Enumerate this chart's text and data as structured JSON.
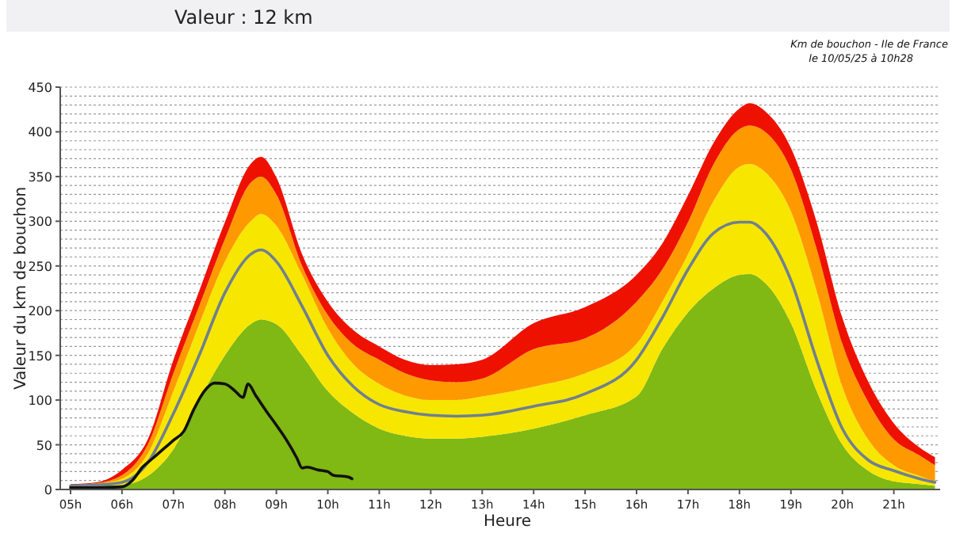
{
  "chart_data": {
    "type": "area",
    "title": "Valeur : 12 km",
    "annotations": [
      "Km de bouchon - Ile de France",
      "le 10/05/25 à 10h28"
    ],
    "xlabel": "Heure",
    "ylabel": "Valeur du km de bouchon",
    "stacked": true,
    "grid": "y",
    "x": [
      5,
      5.5,
      6,
      6.5,
      7,
      7.5,
      8,
      8.5,
      8.7,
      9,
      9.5,
      10,
      10.5,
      11,
      11.5,
      12,
      12.5,
      13,
      14,
      15,
      16,
      16.5,
      17,
      17.5,
      18,
      18.2,
      18.5,
      19,
      19.5,
      20,
      20.5,
      21,
      21.5,
      21.8
    ],
    "xlim": [
      4.8,
      21.9
    ],
    "xticks": [
      {
        "value": 5,
        "label": "05h"
      },
      {
        "value": 6,
        "label": "06h"
      },
      {
        "value": 7,
        "label": "07h"
      },
      {
        "value": 8,
        "label": "08h"
      },
      {
        "value": 9,
        "label": "09h"
      },
      {
        "value": 10,
        "label": "10h"
      },
      {
        "value": 11,
        "label": "11h"
      },
      {
        "value": 12,
        "label": "12h"
      },
      {
        "value": 13,
        "label": "13h"
      },
      {
        "value": 14,
        "label": "14h"
      },
      {
        "value": 15,
        "label": "15h"
      },
      {
        "value": 16,
        "label": "16h"
      },
      {
        "value": 17,
        "label": "17h"
      },
      {
        "value": 18,
        "label": "18h"
      },
      {
        "value": 19,
        "label": "19h"
      },
      {
        "value": 20,
        "label": "20h"
      },
      {
        "value": 21,
        "label": "21h"
      }
    ],
    "ylim": [
      0,
      450
    ],
    "yticks": [
      0,
      {
        "value": 10,
        "label": null
      },
      {
        "value": 20,
        "label": null
      },
      {
        "value": 30,
        "label": null
      },
      {
        "value": 40,
        "label": null
      },
      50,
      {
        "value": 60,
        "label": null
      },
      {
        "value": 70,
        "label": null
      },
      {
        "value": 80,
        "label": null
      },
      {
        "value": 90,
        "label": null
      },
      100,
      {
        "value": 110,
        "label": null
      },
      {
        "value": 120,
        "label": null
      },
      {
        "value": 130,
        "label": null
      },
      {
        "value": 140,
        "label": null
      },
      150,
      {
        "value": 160,
        "label": null
      },
      {
        "value": 170,
        "label": null
      },
      {
        "value": 180,
        "label": null
      },
      {
        "value": 190,
        "label": null
      },
      200,
      {
        "value": 210,
        "label": null
      },
      {
        "value": 220,
        "label": null
      },
      {
        "value": 230,
        "label": null
      },
      {
        "value": 240,
        "label": null
      },
      250,
      {
        "value": 260,
        "label": null
      },
      {
        "value": 270,
        "label": null
      },
      {
        "value": 280,
        "label": null
      },
      {
        "value": 290,
        "label": null
      },
      300,
      {
        "value": 310,
        "label": null
      },
      {
        "value": 320,
        "label": null
      },
      {
        "value": 330,
        "label": null
      },
      {
        "value": 340,
        "label": null
      },
      350,
      {
        "value": 360,
        "label": null
      },
      {
        "value": 370,
        "label": null
      },
      {
        "value": 380,
        "label": null
      },
      {
        "value": 390,
        "label": null
      },
      400,
      {
        "value": 410,
        "label": null
      },
      {
        "value": 420,
        "label": null
      },
      {
        "value": 430,
        "label": null
      },
      {
        "value": 440,
        "label": null
      },
      450
    ],
    "series": [
      {
        "color": "#80b814",
        "values": [
          3,
          4,
          5,
          15,
          45,
          100,
          150,
          185,
          190,
          185,
          150,
          110,
          85,
          68,
          60,
          57,
          57,
          59,
          68,
          83,
          104,
          157,
          198,
          225,
          240,
          241,
          231,
          186,
          110,
          50,
          21,
          9,
          6,
          4
        ]
      },
      {
        "color": "#f7e600",
        "values": [
          1,
          2,
          7,
          25,
          65,
          85,
          105,
          115,
          118,
          110,
          90,
          70,
          55,
          50,
          45,
          43,
          43,
          45,
          47,
          47,
          59,
          53,
          65,
          98,
          121,
          123,
          124,
          125,
          112,
          65,
          35,
          18,
          9,
          5
        ]
      },
      {
        "color": "#ff9900",
        "values": [
          1,
          1,
          4,
          10,
          20,
          20,
          25,
          43,
          42,
          35,
          10,
          15,
          22,
          27,
          25,
          22,
          20,
          20,
          42,
          39,
          47,
          36,
          36,
          41,
          42,
          43,
          45,
          47,
          47,
          48,
          42,
          29,
          23,
          18
        ]
      },
      {
        "color": "#ee1100",
        "values": [
          1,
          1,
          6,
          6,
          15,
          17,
          19,
          21,
          22,
          19,
          13,
          15,
          16,
          15,
          15,
          17,
          20,
          21,
          29,
          35,
          30,
          29,
          30,
          24,
          23,
          25,
          23,
          24,
          30,
          29,
          23,
          18,
          9,
          9
        ]
      },
      {
        "type": "line",
        "color": "#6f8090",
        "values": [
          4,
          5,
          8,
          30,
          85,
          150,
          220,
          263,
          268,
          255,
          205,
          150,
          115,
          95,
          87,
          83,
          82,
          83,
          93,
          107,
          145,
          192,
          246,
          287,
          299,
          299,
          287,
          234,
          145,
          68,
          33,
          21,
          12,
          8
        ]
      },
      {
        "type": "line",
        "color": "#111111",
        "x": [
          5,
          5.5,
          6,
          6.2,
          6.4,
          6.6,
          6.8,
          7,
          7.2,
          7.4,
          7.6,
          7.8,
          8,
          8.2,
          8.35,
          8.45,
          8.6,
          8.8,
          9,
          9.2,
          9.4,
          9.5,
          9.6,
          9.8,
          10,
          10.1,
          10.4,
          10.47
        ],
        "values": [
          2,
          2,
          3,
          10,
          25,
          35,
          45,
          55,
          65,
          90,
          110,
          119,
          118,
          110,
          103,
          118,
          105,
          88,
          72,
          55,
          35,
          24,
          25,
          22,
          20,
          16,
          14,
          12
        ]
      }
    ]
  }
}
